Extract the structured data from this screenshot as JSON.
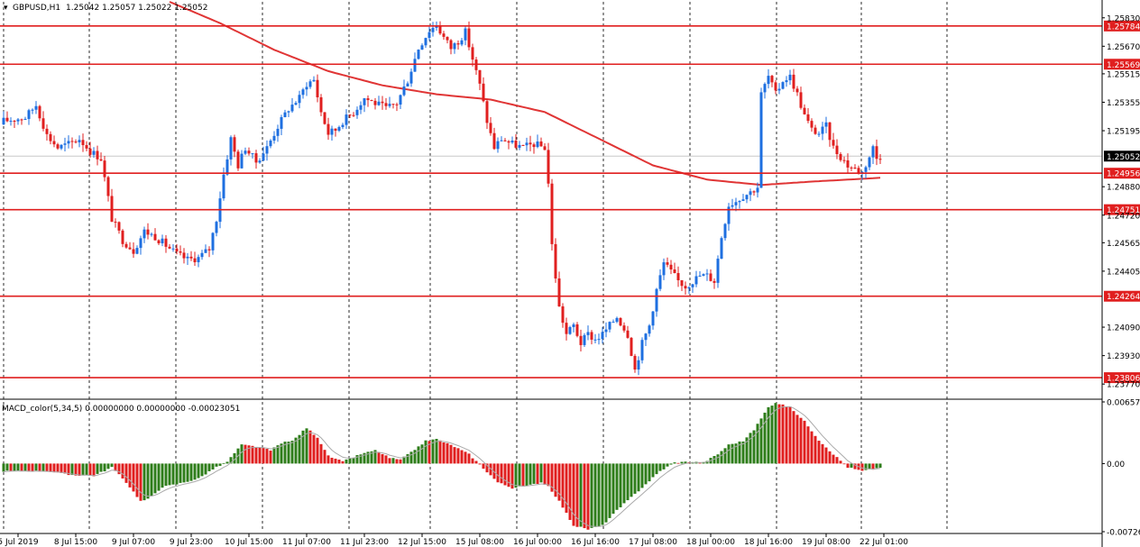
{
  "header": {
    "symbol": "GBPUSD,H1",
    "ohlc": "1.25042 1.25057 1.25022 1.25052"
  },
  "macd_header": {
    "label": "MACD_color(5,34,5) 0.00000000 0.00000000 -0.00023051"
  },
  "colors": {
    "bull": "#1e6fe0",
    "bear": "#e01f1f",
    "level_line": "#e01f1f",
    "ma_line": "#e03535",
    "grid": "#2b2b2b",
    "macd_pos": "#2e7d1a",
    "macd_neg": "#e01f1f",
    "signal": "#aaaaaa"
  },
  "chart_data": [
    {
      "type": "candlestick",
      "title": "GBPUSD,H1",
      "ylim": [
        1.237,
        1.2592
      ],
      "price_ticks": [
        "1.25830",
        "1.25670",
        "1.25515",
        "1.25355",
        "1.25195",
        "1.24880",
        "1.24720",
        "1.24565",
        "1.24405",
        "1.24090",
        "1.23930",
        "1.23770"
      ],
      "levels": [
        "1.25784",
        "1.25569",
        "1.24956",
        "1.24751",
        "1.24264",
        "1.23806"
      ],
      "current_price": "1.25052",
      "time_labels": [
        "5 Jul 2019",
        "8 Jul 15:00",
        "9 Jul 07:00",
        "9 Jul 23:00",
        "10 Jul 15:00",
        "11 Jul 07:00",
        "11 Jul 23:00",
        "12 Jul 15:00",
        "15 Jul 08:00",
        "16 Jul 00:00",
        "16 Jul 16:00",
        "17 Jul 08:00",
        "18 Jul 00:00",
        "18 Jul 16:00",
        "19 Jul 08:00",
        "22 Jul 01:00"
      ],
      "close_anchors": [
        [
          0,
          1.2525
        ],
        [
          6,
          1.2527
        ],
        [
          9,
          1.2534
        ],
        [
          12,
          1.2517
        ],
        [
          15,
          1.251
        ],
        [
          18,
          1.2512
        ],
        [
          21,
          1.2515
        ],
        [
          24,
          1.2508
        ],
        [
          27,
          1.2504
        ],
        [
          30,
          1.247
        ],
        [
          33,
          1.2458
        ],
        [
          36,
          1.2452
        ],
        [
          39,
          1.2463
        ],
        [
          42,
          1.246
        ],
        [
          45,
          1.2455
        ],
        [
          48,
          1.245
        ],
        [
          51,
          1.2447
        ],
        [
          54,
          1.2448
        ],
        [
          57,
          1.2453
        ],
        [
          59,
          1.247
        ],
        [
          61,
          1.2495
        ],
        [
          63,
          1.2515
        ],
        [
          65,
          1.25
        ],
        [
          67,
          1.251
        ],
        [
          70,
          1.2502
        ],
        [
          73,
          1.251
        ],
        [
          76,
          1.2522
        ],
        [
          79,
          1.2532
        ],
        [
          82,
          1.2538
        ],
        [
          84,
          1.2546
        ],
        [
          86,
          1.2548
        ],
        [
          88,
          1.253
        ],
        [
          90,
          1.2518
        ],
        [
          92,
          1.252
        ],
        [
          94,
          1.2525
        ],
        [
          97,
          1.253
        ],
        [
          100,
          1.2538
        ],
        [
          103,
          1.2535
        ],
        [
          106,
          1.2532
        ],
        [
          109,
          1.2535
        ],
        [
          112,
          1.2548
        ],
        [
          115,
          1.2566
        ],
        [
          118,
          1.2576
        ],
        [
          120,
          1.2579
        ],
        [
          122,
          1.2572
        ],
        [
          124,
          1.2566
        ],
        [
          126,
          1.257
        ],
        [
          128,
          1.2575
        ],
        [
          130,
          1.256
        ],
        [
          132,
          1.2545
        ],
        [
          134,
          1.2525
        ],
        [
          136,
          1.251
        ],
        [
          138,
          1.2515
        ],
        [
          141,
          1.2512
        ],
        [
          144,
          1.251
        ],
        [
          147,
          1.2512
        ],
        [
          150,
          1.251
        ],
        [
          151,
          1.249
        ],
        [
          152,
          1.2455
        ],
        [
          154,
          1.242
        ],
        [
          156,
          1.2405
        ],
        [
          158,
          1.241
        ],
        [
          160,
          1.24
        ],
        [
          162,
          1.2405
        ],
        [
          164,
          1.2402
        ],
        [
          166,
          1.2405
        ],
        [
          168,
          1.241
        ],
        [
          170,
          1.2415
        ],
        [
          173,
          1.2405
        ],
        [
          175,
          1.2385
        ],
        [
          177,
          1.24
        ],
        [
          179,
          1.241
        ],
        [
          181,
          1.243
        ],
        [
          183,
          1.2445
        ],
        [
          185,
          1.244
        ],
        [
          187,
          1.2435
        ],
        [
          189,
          1.2432
        ],
        [
          191,
          1.2435
        ],
        [
          193,
          1.2438
        ],
        [
          195,
          1.2438
        ],
        [
          197,
          1.2435
        ],
        [
          199,
          1.246
        ],
        [
          201,
          1.2478
        ],
        [
          203,
          1.248
        ],
        [
          205,
          1.2483
        ],
        [
          207,
          1.2485
        ],
        [
          209,
          1.2488
        ],
        [
          210,
          1.254
        ],
        [
          212,
          1.255
        ],
        [
          214,
          1.254
        ],
        [
          216,
          1.2548
        ],
        [
          218,
          1.255
        ],
        [
          220,
          1.254
        ],
        [
          222,
          1.2528
        ],
        [
          224,
          1.252
        ],
        [
          226,
          1.2518
        ],
        [
          228,
          1.2522
        ],
        [
          230,
          1.251
        ],
        [
          232,
          1.2505
        ],
        [
          234,
          1.25
        ],
        [
          236,
          1.2498
        ],
        [
          238,
          1.2496
        ],
        [
          240,
          1.2505
        ],
        [
          241,
          1.251
        ],
        [
          242,
          1.2504
        ],
        [
          243,
          1.25052
        ]
      ],
      "ma_anchors": [
        [
          46,
          1.2592
        ],
        [
          60,
          1.258
        ],
        [
          75,
          1.2565
        ],
        [
          90,
          1.2553
        ],
        [
          105,
          1.2545
        ],
        [
          120,
          1.254
        ],
        [
          135,
          1.2537
        ],
        [
          150,
          1.253
        ],
        [
          165,
          1.2515
        ],
        [
          180,
          1.25
        ],
        [
          195,
          1.2492
        ],
        [
          210,
          1.2489
        ],
        [
          225,
          1.2491
        ],
        [
          243,
          1.2493
        ]
      ]
    },
    {
      "type": "histogram",
      "title": "MACD_color(5,34,5)",
      "ylim": [
        -0.00726,
        0.00657
      ],
      "ticks": [
        "0.00657",
        "0.00",
        "-0.00726"
      ],
      "value_anchors": [
        [
          0,
          -0.0008
        ],
        [
          12,
          -0.0008
        ],
        [
          18,
          -0.0012
        ],
        [
          25,
          -0.0013
        ],
        [
          30,
          -0.0004
        ],
        [
          34,
          -0.002
        ],
        [
          38,
          -0.004
        ],
        [
          40,
          -0.0038
        ],
        [
          44,
          -0.0025
        ],
        [
          48,
          -0.0022
        ],
        [
          54,
          -0.0016
        ],
        [
          58,
          -0.0006
        ],
        [
          62,
          0.0002
        ],
        [
          66,
          0.002
        ],
        [
          70,
          0.0018
        ],
        [
          74,
          0.0014
        ],
        [
          77,
          0.0022
        ],
        [
          80,
          0.0024
        ],
        [
          84,
          0.0038
        ],
        [
          87,
          0.0028
        ],
        [
          90,
          0.0008
        ],
        [
          94,
          0.0002
        ],
        [
          99,
          0.001
        ],
        [
          103,
          0.0014
        ],
        [
          107,
          0.0006
        ],
        [
          110,
          0.0004
        ],
        [
          113,
          0.0012
        ],
        [
          117,
          0.0024
        ],
        [
          120,
          0.0026
        ],
        [
          125,
          0.0018
        ],
        [
          129,
          0.001
        ],
        [
          133,
          -0.0005
        ],
        [
          137,
          -0.002
        ],
        [
          141,
          -0.0026
        ],
        [
          145,
          -0.0024
        ],
        [
          149,
          -0.002
        ],
        [
          151,
          -0.0024
        ],
        [
          154,
          -0.004
        ],
        [
          158,
          -0.0066
        ],
        [
          162,
          -0.007
        ],
        [
          166,
          -0.0066
        ],
        [
          170,
          -0.005
        ],
        [
          174,
          -0.0036
        ],
        [
          178,
          -0.0022
        ],
        [
          182,
          -0.0008
        ],
        [
          186,
          0.0001
        ],
        [
          190,
          0.0002
        ],
        [
          194,
          0.0001
        ],
        [
          198,
          0.001
        ],
        [
          201,
          0.002
        ],
        [
          205,
          0.0024
        ],
        [
          208,
          0.0036
        ],
        [
          212,
          0.006
        ],
        [
          214,
          0.0065
        ],
        [
          218,
          0.006
        ],
        [
          222,
          0.0045
        ],
        [
          226,
          0.0025
        ],
        [
          230,
          0.001
        ],
        [
          234,
          -0.0004
        ],
        [
          238,
          -0.0008
        ],
        [
          241,
          -0.0006
        ],
        [
          243,
          -0.0004
        ]
      ]
    }
  ]
}
